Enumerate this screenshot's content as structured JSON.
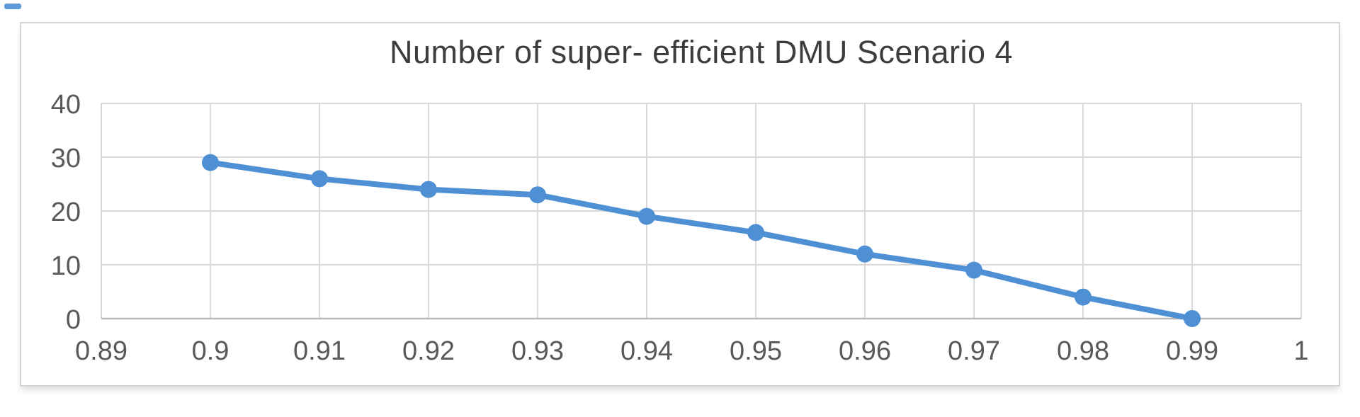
{
  "artifact": {
    "color": "#4e90d3"
  },
  "frame": {
    "border_color": "#d4d4d4",
    "background": "#ffffff"
  },
  "chart_data": {
    "type": "line",
    "title": "Number of super- efficient DMU Scenario 4",
    "x": [
      0.9,
      0.91,
      0.92,
      0.93,
      0.94,
      0.95,
      0.96,
      0.97,
      0.98,
      0.99
    ],
    "values": [
      29,
      26,
      24,
      23,
      19,
      16,
      12,
      9,
      4,
      0
    ],
    "series_name": "Number of super- efficient DMU",
    "xlabel": "",
    "ylabel": "",
    "xlim": [
      0.89,
      1.0
    ],
    "ylim": [
      0,
      40
    ],
    "x_tick_values": [
      0.89,
      0.9,
      0.91,
      0.92,
      0.93,
      0.94,
      0.95,
      0.96,
      0.97,
      0.98,
      0.99,
      1.0
    ],
    "x_tick_labels": [
      "0.89",
      "0.9",
      "0.91",
      "0.92",
      "0.93",
      "0.94",
      "0.95",
      "0.96",
      "0.97",
      "0.98",
      "0.99",
      "1"
    ],
    "y_tick_values": [
      0,
      10,
      20,
      30,
      40
    ],
    "y_tick_labels": [
      "0",
      "10",
      "20",
      "30",
      "40"
    ],
    "grid": true,
    "legend_position": "none",
    "line_color": "#4e90d3",
    "marker": "circle",
    "marker_radius": 12,
    "line_width": 8,
    "gridline_color": "#d9d9d9",
    "axis_line_color": "#b9b9b9",
    "tick_label_color": "#595959",
    "title_color": "#3d3d3d"
  }
}
